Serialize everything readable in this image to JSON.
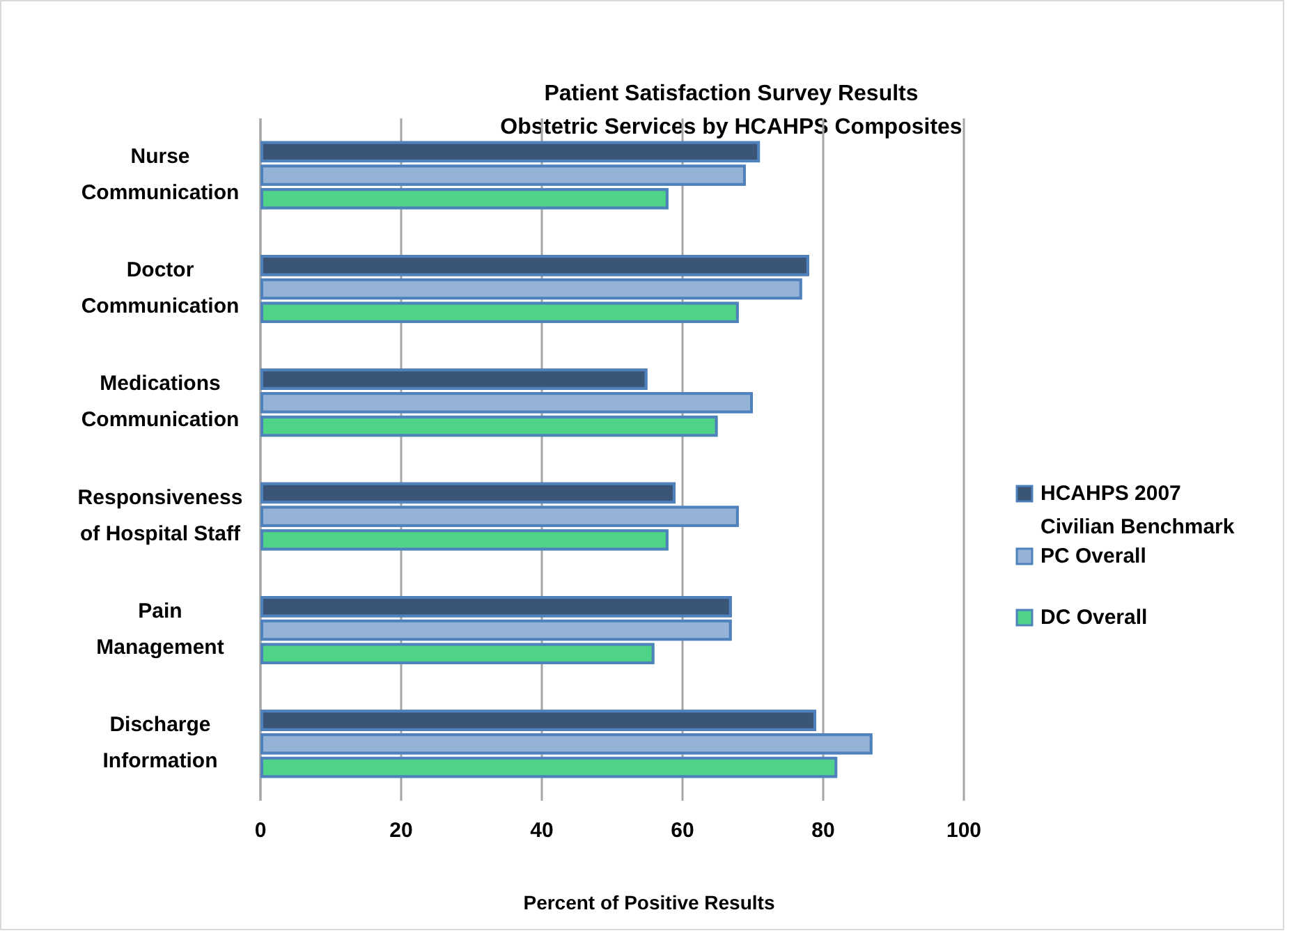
{
  "chart_data": {
    "type": "bar",
    "orientation": "horizontal",
    "title": "Patient Satisfaction Survey Results\nObstetric Services by HCAHPS Composites",
    "xlabel": "Percent of Positive Results",
    "categories": [
      "Nurse\nCommunication",
      "Doctor\nCommunication",
      "Medications\nCommunication",
      "Responsiveness\nof Hospital Staff",
      "Pain\nManagement",
      "Discharge\nInformation"
    ],
    "series": [
      {
        "name": "HCAHPS 2007\nCivilian Benchmark",
        "color": "#3a5576",
        "values": [
          71,
          78,
          55,
          59,
          67,
          79
        ]
      },
      {
        "name": "PC Overall",
        "color": "#95b3d7",
        "values": [
          69,
          77,
          70,
          68,
          67,
          87
        ]
      },
      {
        "name": "DC Overall",
        "color": "#4fd388",
        "values": [
          58,
          68,
          65,
          58,
          56,
          82
        ]
      }
    ],
    "xlim": [
      0,
      100
    ],
    "xticks": [
      0,
      20,
      40,
      60,
      80,
      100
    ],
    "grid": "x",
    "legend": "right"
  }
}
